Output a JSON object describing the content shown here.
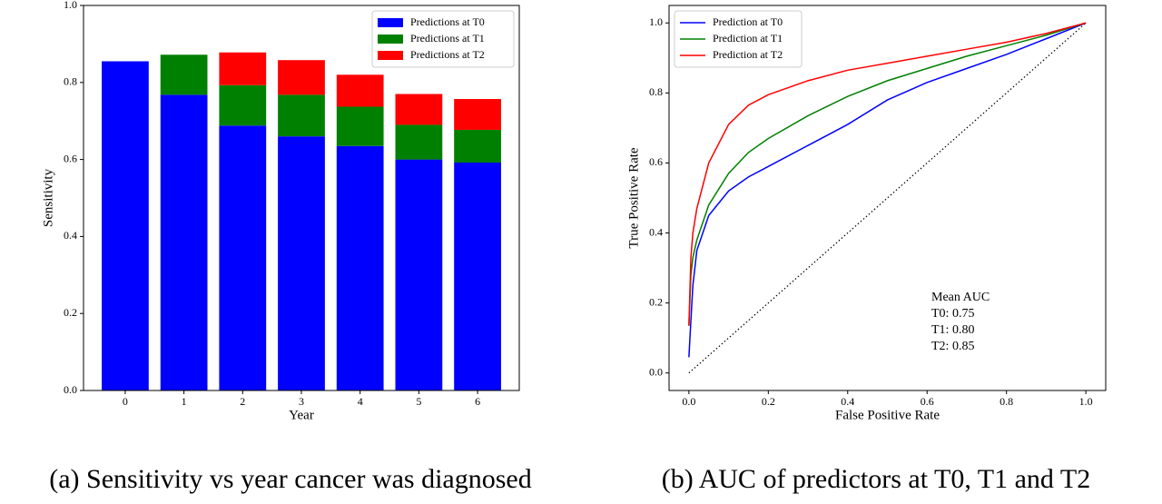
{
  "chart_data": [
    {
      "type": "bar",
      "stacked": true,
      "categories": [
        "0",
        "1",
        "2",
        "3",
        "4",
        "5",
        "6"
      ],
      "series": [
        {
          "name": "Predictions at T0",
          "color": "#0000ff",
          "values": [
            0.855,
            0.768,
            0.688,
            0.66,
            0.635,
            0.6,
            0.592
          ]
        },
        {
          "name": "Predictions at T1",
          "color": "#008000",
          "values": [
            null,
            0.104,
            0.105,
            0.108,
            0.102,
            0.09,
            0.085
          ]
        },
        {
          "name": "Predictions at T2",
          "color": "#ff0000",
          "values": [
            null,
            null,
            0.085,
            0.09,
            0.083,
            0.08,
            0.08
          ]
        }
      ],
      "xlabel": "Year",
      "ylabel": "Sensitivity",
      "ylim": [
        0,
        1
      ],
      "yticks": [
        {
          "value": 0,
          "label": "0.0"
        },
        {
          "value": 0.2,
          "label": "0.2"
        },
        {
          "value": 0.4,
          "label": "0.4"
        },
        {
          "value": 0.6,
          "label": "0.6"
        },
        {
          "value": 0.8,
          "label": "0.8"
        },
        {
          "value": 1,
          "label": "1.0"
        }
      ],
      "legend": "upper-right",
      "caption": "(a) Sensitivity vs year cancer was diagnosed"
    },
    {
      "type": "line",
      "x": [
        0,
        0.005,
        0.01,
        0.02,
        0.05,
        0.1,
        0.15,
        0.2,
        0.3,
        0.4,
        0.5,
        0.6,
        0.7,
        0.8,
        0.9,
        1
      ],
      "series": [
        {
          "name": "Prediction at T0",
          "color": "#0000ff",
          "values": [
            0.045,
            0.15,
            0.25,
            0.35,
            0.45,
            0.52,
            0.56,
            0.59,
            0.65,
            0.71,
            0.78,
            0.83,
            0.87,
            0.91,
            0.955,
            1
          ]
        },
        {
          "name": "Prediction at T1",
          "color": "#008000",
          "values": [
            0.135,
            0.28,
            0.33,
            0.38,
            0.48,
            0.57,
            0.63,
            0.67,
            0.735,
            0.79,
            0.835,
            0.87,
            0.905,
            0.935,
            0.965,
            1
          ]
        },
        {
          "name": "Prediction at T2",
          "color": "#ff0000",
          "values": [
            0.135,
            0.33,
            0.4,
            0.47,
            0.6,
            0.71,
            0.765,
            0.795,
            0.835,
            0.865,
            0.885,
            0.905,
            0.925,
            0.945,
            0.97,
            1
          ]
        }
      ],
      "diagonal": true,
      "xlabel": "False Positive Rate",
      "ylabel": "True Positive Rate",
      "xlim": [
        -0.05,
        1.05
      ],
      "ylim": [
        -0.05,
        1.05
      ],
      "xticks": [
        {
          "value": 0,
          "label": "0.0"
        },
        {
          "value": 0.2,
          "label": "0.2"
        },
        {
          "value": 0.4,
          "label": "0.4"
        },
        {
          "value": 0.6,
          "label": "0.6"
        },
        {
          "value": 0.8,
          "label": "0.8"
        },
        {
          "value": 1,
          "label": "1.0"
        }
      ],
      "yticks": [
        {
          "value": 0,
          "label": "0.0"
        },
        {
          "value": 0.2,
          "label": "0.2"
        },
        {
          "value": 0.4,
          "label": "0.4"
        },
        {
          "value": 0.6,
          "label": "0.6"
        },
        {
          "value": 0.8,
          "label": "0.8"
        },
        {
          "value": 1,
          "label": "1.0"
        }
      ],
      "legend": "upper-left",
      "annotation": [
        "Mean AUC",
        "T0:  0.75",
        "T1:  0.80",
        "T2:  0.85"
      ],
      "caption": "(b) AUC of predictors at T0, T1 and T2"
    }
  ]
}
